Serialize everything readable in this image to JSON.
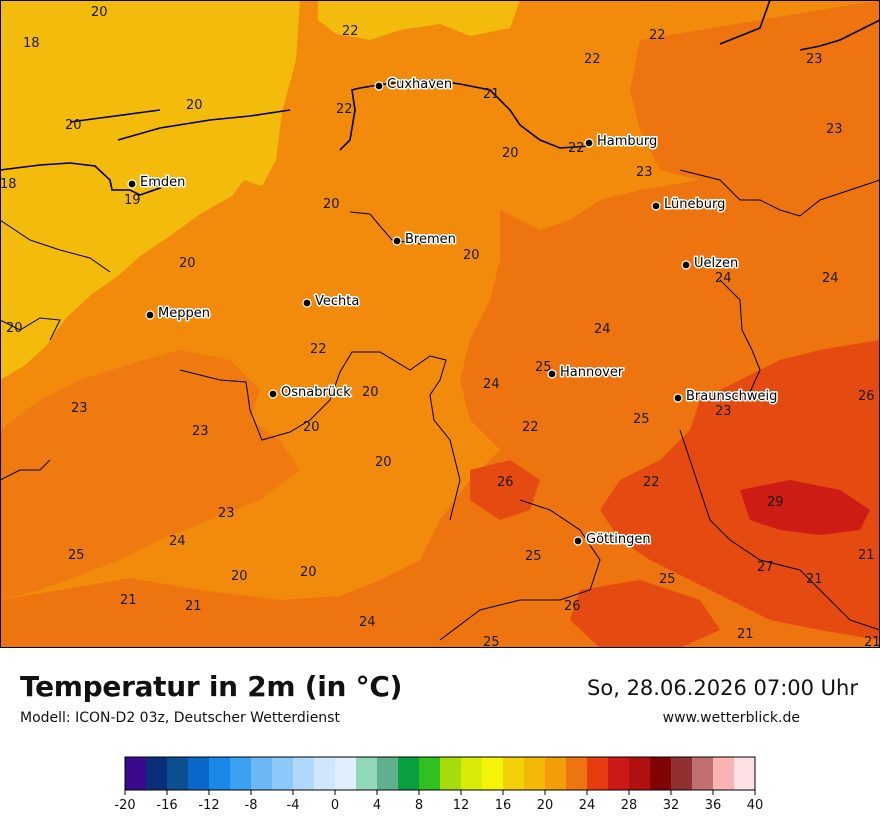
{
  "header": {
    "title": "Temperatur in 2m (in °C)",
    "model": "Modell: ICON-D2 03z, Deutscher Wetterdienst",
    "datetime": "So, 28.06.2026 07:00 Uhr",
    "website": "www.wetterblick.de"
  },
  "cities": [
    {
      "name": "Cuxhaven"
    },
    {
      "name": "Hamburg"
    },
    {
      "name": "Emden"
    },
    {
      "name": "Bremen"
    },
    {
      "name": "Lüneburg"
    },
    {
      "name": "Uelzen"
    },
    {
      "name": "Vechta"
    },
    {
      "name": "Meppen"
    },
    {
      "name": "Hannover"
    },
    {
      "name": "Osnabrück"
    },
    {
      "name": "Braunschweig"
    },
    {
      "name": "Göttingen"
    }
  ],
  "temperature_labels": [
    "20",
    "18",
    "22",
    "22",
    "22",
    "23",
    "23",
    "22",
    "20",
    "21",
    "20",
    "22",
    "20",
    "18",
    "19",
    "23",
    "20",
    "20",
    "20",
    "24",
    "24",
    "20",
    "19",
    "22",
    "24",
    "25",
    "24",
    "20",
    "23",
    "23",
    "26",
    "20",
    "25",
    "22",
    "20",
    "26",
    "22",
    "23",
    "29",
    "23",
    "24",
    "25",
    "25",
    "21",
    "20",
    "20",
    "25",
    "27",
    "21",
    "21",
    "21",
    "26",
    "24",
    "25",
    "21",
    "21"
  ],
  "legend": {
    "colors": [
      "#3a0a8c",
      "#0a2f78",
      "#0a4f8f",
      "#0a68c8",
      "#1a88e8",
      "#3aa0f0",
      "#6cb8f5",
      "#8ec8f8",
      "#b0d8fb",
      "#cfe6fd",
      "#e1eefc",
      "#90d8b8",
      "#60b090",
      "#0aa040",
      "#30c020",
      "#a8dc08",
      "#d8ec08",
      "#f4f408",
      "#f4d008",
      "#f4b808",
      "#f49c0a",
      "#ee7410",
      "#e63c10",
      "#cc1818",
      "#b01010",
      "#800404",
      "#903030",
      "#c07070",
      "#f8b4b4",
      "#fde0e4"
    ],
    "ticks": [
      "-20",
      "-16",
      "-12",
      "-8",
      "-4",
      "0",
      "4",
      "8",
      "12",
      "16",
      "20",
      "24",
      "28",
      "32",
      "36",
      "40"
    ]
  }
}
